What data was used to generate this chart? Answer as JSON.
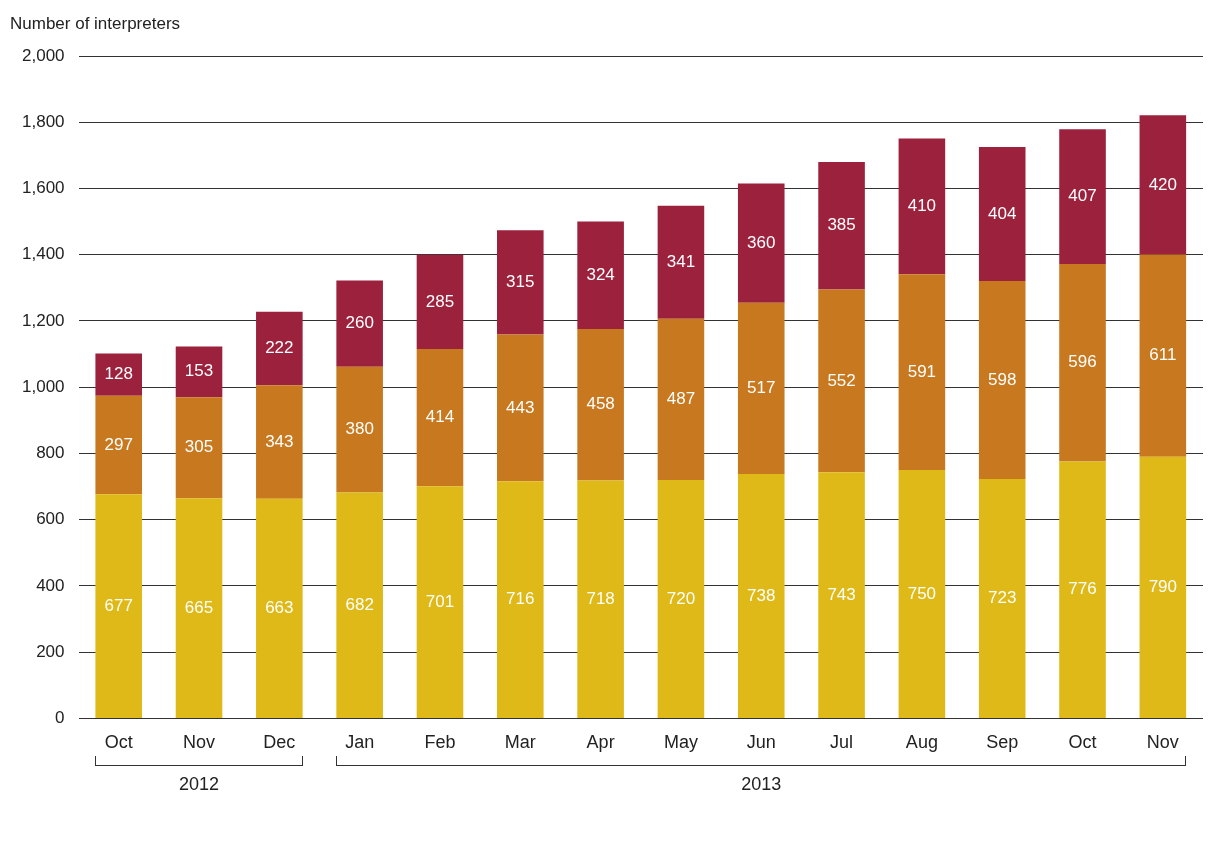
{
  "chart_data": {
    "type": "bar",
    "stacked": true,
    "ylabel": "Number of interpreters",
    "categories": [
      "Oct",
      "Nov",
      "Dec",
      "Jan",
      "Feb",
      "Mar",
      "Apr",
      "May",
      "Jun",
      "Jul",
      "Aug",
      "Sep",
      "Oct",
      "Nov"
    ],
    "series": [
      {
        "color": "#dfb917",
        "values": [
          677,
          665,
          663,
          682,
          701,
          716,
          718,
          720,
          738,
          743,
          750,
          723,
          776,
          790
        ]
      },
      {
        "color": "#c8781f",
        "values": [
          297,
          305,
          343,
          380,
          414,
          443,
          458,
          487,
          517,
          552,
          591,
          598,
          596,
          611
        ]
      },
      {
        "color": "#9b213c",
        "values": [
          128,
          153,
          222,
          260,
          285,
          315,
          324,
          341,
          360,
          385,
          410,
          404,
          407,
          420
        ]
      }
    ],
    "ylim": [
      0,
      2000
    ],
    "yticks": [
      0,
      200,
      400,
      600,
      800,
      {
        "value": 1000,
        "label": "1,000"
      },
      {
        "value": 1200,
        "label": "1,200"
      },
      {
        "value": 1400,
        "label": "1,400"
      },
      {
        "value": 1600,
        "label": "1,600"
      },
      {
        "value": 1800,
        "label": "1,800"
      },
      {
        "value": 2000,
        "label": "2,000"
      }
    ],
    "grid": "y",
    "legend": false,
    "data_labels": true,
    "annotations": [
      "2012",
      "2013"
    ]
  }
}
